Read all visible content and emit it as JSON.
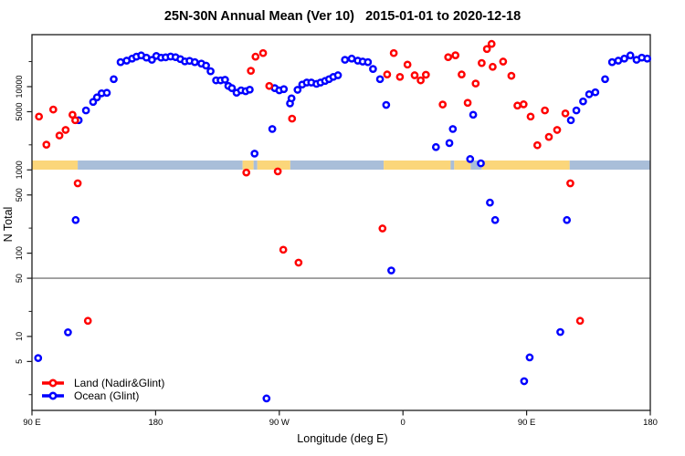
{
  "chart_data": {
    "type": "scatter",
    "title": "25N-30N Annual Mean (Ver 10)   2015-01-01 to 2020-12-18",
    "xlabel": "Longitude (deg E)",
    "ylabel": "N Total",
    "x_axis": {
      "range": [
        90,
        540
      ],
      "ticks": [
        {
          "pos": 90,
          "label": "90 E"
        },
        {
          "pos": 180,
          "label": "180"
        },
        {
          "pos": 270,
          "label": "90 W"
        },
        {
          "pos": 360,
          "label": "0"
        },
        {
          "pos": 450,
          "label": "90 E"
        },
        {
          "pos": 540,
          "label": "180"
        }
      ]
    },
    "y_axis": {
      "scale": "log",
      "range_approx": [
        1.1,
        42000
      ],
      "ticks_labeled": [
        5,
        10,
        50,
        100,
        500,
        1000,
        5000,
        10000
      ],
      "ticks_minor": [
        2,
        20,
        200,
        2000,
        20000
      ]
    },
    "reference_line": {
      "value": 50,
      "color": "#7a7a7a"
    },
    "surface_band": {
      "description": "land/ocean surface type strip vs longitude",
      "land_color": "#fbd67a",
      "ocean_color": "#a9bed9",
      "segments": [
        {
          "from": 90,
          "to": 123.3,
          "surface": "land"
        },
        {
          "from": 123.3,
          "to": 243.3,
          "surface": "ocean"
        },
        {
          "from": 243.3,
          "to": 251.3,
          "surface": "land"
        },
        {
          "from": 251.3,
          "to": 254,
          "surface": "ocean"
        },
        {
          "from": 254,
          "to": 278,
          "surface": "land"
        },
        {
          "from": 278,
          "to": 346,
          "surface": "ocean"
        },
        {
          "from": 346,
          "to": 394.7,
          "surface": "land"
        },
        {
          "from": 394.7,
          "to": 397.3,
          "surface": "ocean"
        },
        {
          "from": 397.3,
          "to": 409.3,
          "surface": "land"
        },
        {
          "from": 409.3,
          "to": 417.3,
          "surface": "ocean"
        },
        {
          "from": 417.3,
          "to": 481.3,
          "surface": "land"
        },
        {
          "from": 481.3,
          "to": 540,
          "surface": "ocean"
        }
      ]
    },
    "series": [
      {
        "name": "Land (Nadir&Glint)",
        "color": "#ff0000",
        "points": [
          [
            95.1,
            4370
          ],
          [
            100.5,
            2010
          ],
          [
            105.5,
            5310
          ],
          [
            110,
            2590
          ],
          [
            114.5,
            3020
          ],
          [
            119.5,
            4600
          ],
          [
            121.5,
            3950
          ],
          [
            123.3,
            690
          ],
          [
            130.7,
            15.4
          ],
          [
            246,
            930
          ],
          [
            249.3,
            15500
          ],
          [
            252.7,
            22900
          ],
          [
            258.2,
            25300
          ],
          [
            262.7,
            10200
          ],
          [
            268.9,
            960
          ],
          [
            272.9,
            110
          ],
          [
            279.3,
            4130
          ],
          [
            284,
            77
          ],
          [
            345.1,
            198
          ],
          [
            348.5,
            14000
          ],
          [
            353.3,
            25300
          ],
          [
            357.8,
            13100
          ],
          [
            363.3,
            18400
          ],
          [
            368.5,
            13700
          ],
          [
            372.9,
            11900
          ],
          [
            376.7,
            13900
          ],
          [
            388.9,
            6100
          ],
          [
            392.9,
            22600
          ],
          [
            398.2,
            23800
          ],
          [
            402.7,
            14000
          ],
          [
            407.1,
            6390
          ],
          [
            412.9,
            10900
          ],
          [
            417.3,
            19200
          ],
          [
            421.1,
            28300
          ],
          [
            424.5,
            32600
          ],
          [
            425.3,
            17300
          ],
          [
            432.9,
            20000
          ],
          [
            438.9,
            13500
          ],
          [
            443.3,
            5920
          ],
          [
            447.8,
            6130
          ],
          [
            452.9,
            4370
          ],
          [
            457.8,
            1980
          ],
          [
            463.3,
            5180
          ],
          [
            466.2,
            2490
          ],
          [
            472.2,
            3020
          ],
          [
            478.2,
            4770
          ],
          [
            481.8,
            690
          ],
          [
            488.9,
            15.4
          ]
        ]
      },
      {
        "name": "Ocean (Glint)",
        "color": "#0000ff",
        "points": [
          [
            94.5,
            5.5
          ],
          [
            116.2,
            11.2
          ],
          [
            121.8,
            250
          ],
          [
            124,
            3950
          ],
          [
            129.3,
            5180
          ],
          [
            134.5,
            6550
          ],
          [
            137.3,
            7430
          ],
          [
            140.7,
            8320
          ],
          [
            144.5,
            8430
          ],
          [
            149.5,
            12300
          ],
          [
            154.5,
            19700
          ],
          [
            158.9,
            20500
          ],
          [
            162.9,
            21700
          ],
          [
            166,
            22900
          ],
          [
            169.5,
            23700
          ],
          [
            173.3,
            22300
          ],
          [
            177.3,
            21000
          ],
          [
            180.5,
            23400
          ],
          [
            184,
            22300
          ],
          [
            187.3,
            22500
          ],
          [
            190.9,
            23000
          ],
          [
            194.5,
            22600
          ],
          [
            198,
            21400
          ],
          [
            201.3,
            20100
          ],
          [
            204.7,
            20400
          ],
          [
            208.5,
            19700
          ],
          [
            213.3,
            18900
          ],
          [
            216.7,
            17900
          ],
          [
            220,
            15300
          ],
          [
            224,
            11900
          ],
          [
            227.3,
            11900
          ],
          [
            230.5,
            12100
          ],
          [
            232.9,
            10200
          ],
          [
            235.5,
            9600
          ],
          [
            238.9,
            8450
          ],
          [
            242.2,
            9030
          ],
          [
            245.5,
            8810
          ],
          [
            248.5,
            9200
          ],
          [
            252,
            1570
          ],
          [
            260.7,
            1.8
          ],
          [
            264.9,
            3100
          ],
          [
            266.7,
            9600
          ],
          [
            270,
            9030
          ],
          [
            273.3,
            9330
          ],
          [
            277.8,
            6290
          ],
          [
            278.9,
            7230
          ],
          [
            283.3,
            9160
          ],
          [
            286.7,
            10600
          ],
          [
            290,
            11200
          ],
          [
            293.3,
            11200
          ],
          [
            297.1,
            10800
          ],
          [
            300,
            11200
          ],
          [
            303.3,
            11700
          ],
          [
            306.2,
            12300
          ],
          [
            309.3,
            13100
          ],
          [
            312.7,
            13700
          ],
          [
            317.8,
            21000
          ],
          [
            322.7,
            21700
          ],
          [
            327.1,
            20500
          ],
          [
            330.7,
            20000
          ],
          [
            334.5,
            19700
          ],
          [
            338.2,
            16300
          ],
          [
            343.3,
            12300
          ],
          [
            347.8,
            6030
          ],
          [
            351.5,
            62
          ],
          [
            384,
            1880
          ],
          [
            393.8,
            2100
          ],
          [
            396.3,
            3100
          ],
          [
            408.9,
            1350
          ],
          [
            411.1,
            4600
          ],
          [
            416.7,
            1200
          ],
          [
            423.3,
            405
          ],
          [
            427.1,
            250
          ],
          [
            448.2,
            2.9
          ],
          [
            452.2,
            5.6
          ],
          [
            474.5,
            11.3
          ],
          [
            479.3,
            250
          ],
          [
            482.2,
            3950
          ],
          [
            486.2,
            5180
          ],
          [
            491.1,
            6650
          ],
          [
            495.5,
            8100
          ],
          [
            500,
            8550
          ],
          [
            507.1,
            12300
          ],
          [
            512.2,
            19700
          ],
          [
            516.7,
            20500
          ],
          [
            521.1,
            21700
          ],
          [
            525.5,
            23700
          ],
          [
            530,
            21000
          ],
          [
            533.8,
            22300
          ],
          [
            537.8,
            21700
          ]
        ]
      }
    ],
    "legend": {
      "position": "bottom-left"
    }
  }
}
